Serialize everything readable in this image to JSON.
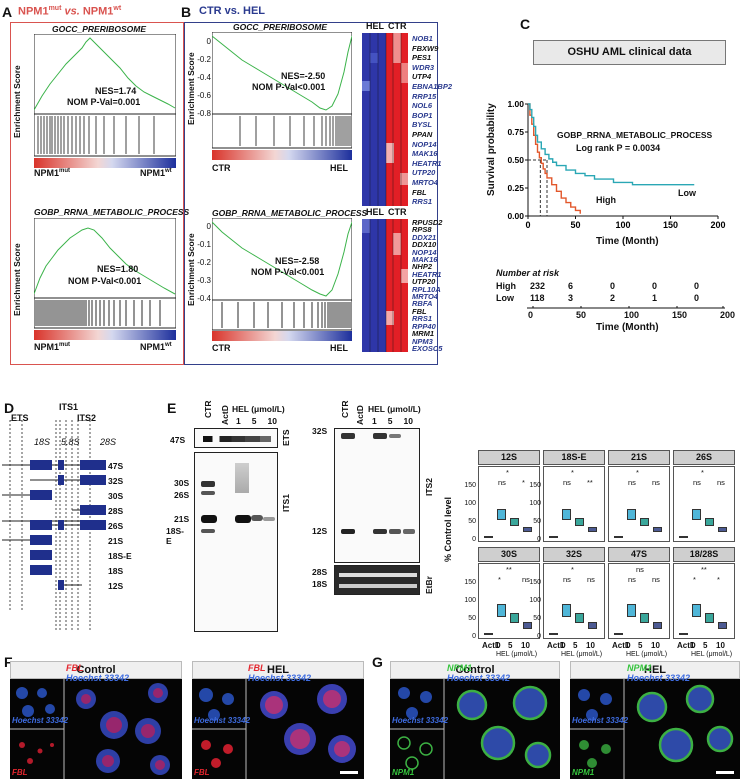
{
  "panelA": {
    "label": "A",
    "title_a": "NPM1",
    "title_sup_a": "mut",
    "title_vs": " vs. ",
    "title_b": "NPM1",
    "title_sup_b": "wt",
    "plot1": {
      "geneset": "GOCC_PRERIBOSOME",
      "nes": "NES=1.74",
      "pval": "NOM P-Val=0.001",
      "left": "NPM1",
      "left_sup": "mut",
      "right": "NPM1",
      "right_sup": "wt",
      "yaxis": "Enrichment Score"
    },
    "plot2": {
      "geneset": "GOBP_RRNA_METABOLIC_PROCESS",
      "nes": "NES=1.80",
      "pval": "NOM P-Val<0.001",
      "left": "NPM1",
      "left_sup": "mut",
      "right": "NPM1",
      "right_sup": "wt",
      "yaxis": "Enrichment Score"
    }
  },
  "panelB": {
    "label": "B",
    "title": "CTR vs. HEL",
    "plot1": {
      "geneset": "GOCC_PRERIBOSOME",
      "nes": "NES=-2.50",
      "pval": "NOM P-Val<0.001",
      "left": "CTR",
      "right": "HEL",
      "yaxis": "Enrichment Score",
      "yticks": [
        "0",
        "-0.2",
        "-0.4",
        "-0.6",
        "-0.8"
      ]
    },
    "plot2": {
      "geneset": "GOBP_RRNA_METABOLIC_PROCESS",
      "nes": "NES=-2.58",
      "pval": "NOM P-Val<0.001",
      "left": "CTR",
      "right": "HEL",
      "yaxis": "Enrichment Score",
      "yticks": [
        "0",
        "-0.1",
        "-0.2",
        "-0.3",
        "-0.4"
      ]
    },
    "hm_labels": [
      "HEL",
      "CTR"
    ],
    "genes1": [
      "NOB1",
      "FBXW9",
      "PES1",
      "WDR3",
      "UTP4",
      "EBNA1BP2",
      "RRP15",
      "NOL6",
      "BOP1",
      "BYSL",
      "PPAN",
      "NOP14",
      "MAK16",
      "HEATR1",
      "UTP20",
      "MRTO4",
      "FBL",
      "RRS1"
    ],
    "genes2": [
      "RPUSD2",
      "RPS8",
      "DDX21",
      "DDX10",
      "NOP14",
      "MAK16",
      "NHP2",
      "HEATR1",
      "UTP20",
      "RPL10A",
      "MRTO4",
      "RBFA",
      "FBL",
      "RRS1",
      "RPP40",
      "MRM1",
      "NPM3",
      "EXOSC5"
    ]
  },
  "panelC": {
    "label": "C",
    "title": "OSHU AML clinical data",
    "geneset": "GOBP_RRNA_METABOLIC_PROCESS",
    "logrank": "Log rank P = 0.0034",
    "ylabel": "Survival probability",
    "xlabel": "Time (Month)",
    "high": "High",
    "low": "Low",
    "risk_title": "Number at risk",
    "risk_rows": [
      {
        "name": "High",
        "values": [
          "232",
          "6",
          "0",
          "0",
          "0"
        ]
      },
      {
        "name": "Low",
        "values": [
          "118",
          "3",
          "2",
          "1",
          "0"
        ]
      }
    ],
    "risk_xlabel": "Time (Month)",
    "chart_data": {
      "type": "line",
      "xlabel": "Time (Month)",
      "ylabel": "Survival probability",
      "xlim": [
        0,
        200
      ],
      "ylim": [
        0,
        1
      ],
      "xticks": [
        0,
        50,
        100,
        150,
        200
      ],
      "yticks": [
        0.0,
        0.25,
        0.5,
        0.75,
        1.0
      ],
      "series": [
        {
          "name": "High",
          "color": "#e2572b",
          "x": [
            0,
            2,
            4,
            6,
            8,
            10,
            12,
            14,
            16,
            18,
            20,
            25,
            30,
            35,
            40,
            45,
            50,
            55
          ],
          "y": [
            1.0,
            0.9,
            0.82,
            0.72,
            0.64,
            0.57,
            0.52,
            0.47,
            0.42,
            0.38,
            0.34,
            0.28,
            0.22,
            0.16,
            0.12,
            0.08,
            0.05,
            0.02
          ]
        },
        {
          "name": "Low",
          "color": "#2aa7b5",
          "x": [
            0,
            2,
            4,
            6,
            8,
            10,
            14,
            18,
            22,
            26,
            30,
            40,
            50,
            60,
            70,
            90,
            110,
            130,
            150,
            170,
            175
          ],
          "y": [
            1.0,
            0.95,
            0.88,
            0.8,
            0.72,
            0.66,
            0.6,
            0.55,
            0.51,
            0.48,
            0.45,
            0.41,
            0.38,
            0.36,
            0.33,
            0.3,
            0.28,
            0.28,
            0.28,
            0.28,
            0.28
          ]
        }
      ]
    }
  },
  "panelD": {
    "label": "D",
    "regions": [
      "ETS",
      "ITS1",
      "ITS2"
    ],
    "rnas": [
      "18S",
      "5.8S",
      "28S"
    ],
    "species": [
      "47S",
      "32S",
      "30S",
      "28S",
      "26S",
      "21S",
      "18S-E",
      "18S",
      "12S"
    ]
  },
  "panelE": {
    "label": "E",
    "lanes": [
      "CTR",
      "ActD"
    ],
    "hel": "HEL (μmol/L)",
    "doses": [
      "1",
      "5",
      "10"
    ],
    "gel1_marks": [
      "47S",
      "30S",
      "26S",
      "21S",
      "18S-E"
    ],
    "gel1_side": [
      "ETS",
      "ITS1"
    ],
    "gel2_marks": [
      "32S",
      "12S",
      "28S",
      "18S"
    ],
    "gel2_side": [
      "ITS2",
      "EtBr"
    ],
    "ylabel": "% Control level",
    "xcats": [
      "ActD",
      "1",
      "5",
      "10"
    ],
    "xgroup": "HEL (μmol/L)",
    "top_row": [
      {
        "title": "12S",
        "yticks": [
          "0",
          "50",
          "100",
          "150"
        ],
        "sig": [
          "*",
          "ns",
          "*"
        ]
      },
      {
        "title": "18S-E",
        "yticks": [
          "0",
          "50",
          "100",
          "150"
        ],
        "sig": [
          "*",
          "ns",
          "**"
        ]
      },
      {
        "title": "21S",
        "yticks": [],
        "sig": [
          "*",
          "ns",
          "ns"
        ]
      },
      {
        "title": "26S",
        "yticks": [],
        "sig": [
          "*",
          "ns",
          "ns"
        ]
      }
    ],
    "bottom_row": [
      {
        "title": "30S",
        "yticks": [
          "0",
          "50",
          "100",
          "150"
        ],
        "sig": [
          "**",
          "*",
          "ns"
        ]
      },
      {
        "title": "32S",
        "yticks": [
          "0",
          "50",
          "100",
          "150"
        ],
        "sig": [
          "*",
          "ns",
          "ns"
        ]
      },
      {
        "title": "47S",
        "yticks": [],
        "sig": [
          "ns",
          "ns",
          "ns"
        ]
      },
      {
        "title": "18/28S",
        "yticks": [],
        "sig": [
          "**",
          "*",
          "*"
        ]
      }
    ]
  },
  "panelF": {
    "label": "F",
    "control": "Control",
    "hel": "HEL",
    "stain": "FBL",
    "nuc": "Hoechst 33342"
  },
  "panelG": {
    "label": "G",
    "control": "Control",
    "hel": "HEL",
    "stain": "NPM1",
    "nuc": "Hoechst 33342"
  }
}
